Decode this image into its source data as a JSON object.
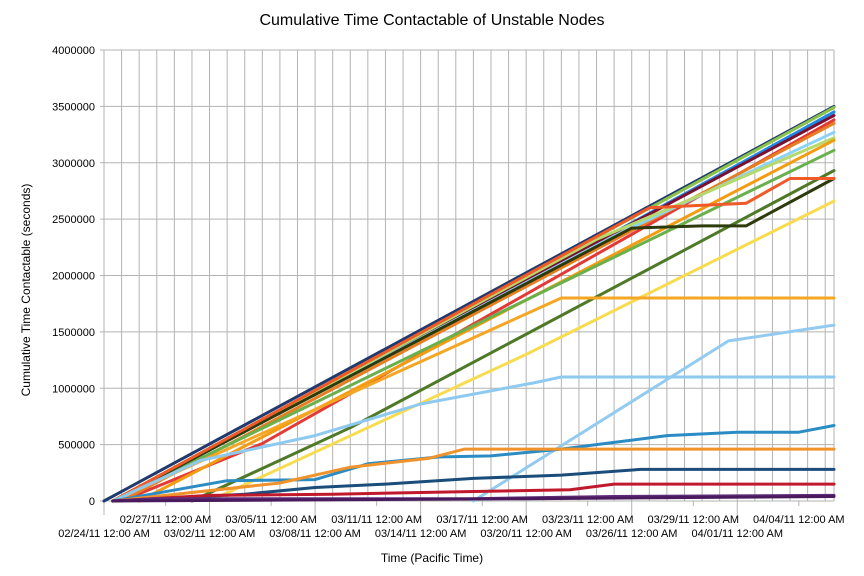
{
  "chart_data": {
    "type": "line",
    "title": "Cumulative Time Contactable of Unstable Nodes",
    "xlabel": "Time (Pacific Time)",
    "ylabel": "Cumulative Time Contactable (seconds)",
    "ylim": [
      0,
      4000000
    ],
    "yticks": [
      0,
      500000,
      1000000,
      1500000,
      2000000,
      2500000,
      3000000,
      3500000,
      4000000
    ],
    "xlim": [
      "2011-02-24 00:00",
      "2011-04-06 12:00"
    ],
    "xticks": [
      {
        "t": "2011-02-27 12:00",
        "label": "02/27/11 12:00 AM"
      },
      {
        "t": "2011-03-05 12:00",
        "label": "03/05/11 12:00 AM"
      },
      {
        "t": "2011-03-11 12:00",
        "label": "03/11/11 12:00 AM"
      },
      {
        "t": "2011-03-17 12:00",
        "label": "03/17/11 12:00 AM"
      },
      {
        "t": "2011-03-23 12:00",
        "label": "03/23/11 12:00 AM"
      },
      {
        "t": "2011-03-29 12:00",
        "label": "03/29/11 12:00 AM"
      },
      {
        "t": "2011-04-04 12:00",
        "label": "04/04/11 12:00 AM"
      },
      {
        "t": "2011-02-24 00:00",
        "label": "02/24/11 12:00 AM"
      },
      {
        "t": "2011-03-02 00:00",
        "label": "03/02/11 12:00 AM"
      },
      {
        "t": "2011-03-08 00:00",
        "label": "03/08/11 12:00 AM"
      },
      {
        "t": "2011-03-14 00:00",
        "label": "03/14/11 12:00 AM"
      },
      {
        "t": "2011-03-20 00:00",
        "label": "03/20/11 12:00 AM"
      },
      {
        "t": "2011-03-26 00:00",
        "label": "03/26/11 12:00 AM"
      },
      {
        "t": "2011-04-01 00:00",
        "label": "04/01/11 12:00 AM"
      }
    ],
    "grid": true,
    "legend": "none",
    "series": [
      {
        "color": "#1f3a6e",
        "points": [
          [
            "2011-02-24 00:00",
            0
          ],
          [
            "2011-04-06 12:00",
            3500000
          ]
        ]
      },
      {
        "color": "#8bc34a",
        "points": [
          [
            "2011-02-24 12:00",
            0
          ],
          [
            "2011-04-06 12:00",
            3490000
          ]
        ]
      },
      {
        "color": "#1e88e5",
        "points": [
          [
            "2011-02-24 12:00",
            0
          ],
          [
            "2011-03-23 00:00",
            2210000
          ],
          [
            "2011-04-06 12:00",
            3450000
          ]
        ]
      },
      {
        "color": "#7b1030",
        "points": [
          [
            "2011-02-24 12:00",
            0
          ],
          [
            "2011-04-06 12:00",
            3420000
          ]
        ]
      },
      {
        "color": "#e53935",
        "points": [
          [
            "2011-02-25 00:00",
            0
          ],
          [
            "2011-03-05 00:00",
            510000
          ],
          [
            "2011-04-06 12:00",
            3380000
          ]
        ]
      },
      {
        "color": "#e67e22",
        "points": [
          [
            "2011-02-25 00:00",
            0
          ],
          [
            "2011-04-06 12:00",
            3350000
          ]
        ]
      },
      {
        "color": "#8bd3f5",
        "points": [
          [
            "2011-02-24 12:00",
            0
          ],
          [
            "2011-03-25 00:00",
            2350000
          ],
          [
            "2011-04-06 12:00",
            3270000
          ]
        ]
      },
      {
        "color": "#b5d96b",
        "points": [
          [
            "2011-02-24 12:00",
            0
          ],
          [
            "2011-03-24 00:00",
            2320000
          ],
          [
            "2011-04-06 12:00",
            3220000
          ]
        ]
      },
      {
        "color": "#f39c12",
        "points": [
          [
            "2011-02-26 00:00",
            0
          ],
          [
            "2011-04-06 12:00",
            3200000
          ]
        ]
      },
      {
        "color": "#6ab04c",
        "points": [
          [
            "2011-02-24 12:00",
            0
          ],
          [
            "2011-04-06 12:00",
            3110000
          ]
        ]
      },
      {
        "color": "#4e7a27",
        "points": [
          [
            "2011-03-01 00:00",
            0
          ],
          [
            "2011-03-10 00:00",
            650000
          ],
          [
            "2011-04-06 12:00",
            2930000
          ]
        ]
      },
      {
        "color": "#2d3b0c",
        "points": [
          [
            "2011-02-24 12:00",
            0
          ],
          [
            "2011-03-26 00:00",
            2420000
          ],
          [
            "2011-03-30 00:00",
            2440000
          ],
          [
            "2011-04-01 12:00",
            2440000
          ],
          [
            "2011-04-06 12:00",
            2860000
          ]
        ]
      },
      {
        "color": "#f05a28",
        "points": [
          [
            "2011-02-24 12:00",
            0
          ],
          [
            "2011-03-27 00:00",
            2600000
          ],
          [
            "2011-04-01 12:00",
            2640000
          ],
          [
            "2011-04-04 00:00",
            2860000
          ],
          [
            "2011-04-06 12:00",
            2860000
          ]
        ]
      },
      {
        "color": "#f7dc4f",
        "points": [
          [
            "2011-03-02 00:00",
            0
          ],
          [
            "2011-03-20 00:00",
            1300000
          ],
          [
            "2011-04-06 12:00",
            2660000
          ]
        ]
      },
      {
        "color": "#f5a623",
        "points": [
          [
            "2011-02-24 12:00",
            0
          ],
          [
            "2011-03-22 00:00",
            1800000
          ],
          [
            "2011-04-06 12:00",
            1800000
          ]
        ]
      },
      {
        "color": "#8ec9ef",
        "points": [
          [
            "2011-02-24 12:00",
            0
          ],
          [
            "2011-03-01 12:00",
            360000
          ],
          [
            "2011-03-08 00:00",
            580000
          ],
          [
            "2011-03-14 00:00",
            860000
          ],
          [
            "2011-03-20 12:00",
            1050000
          ],
          [
            "2011-03-22 00:00",
            1100000
          ],
          [
            "2011-04-06 12:00",
            1100000
          ]
        ]
      },
      {
        "color": "#93cbf0",
        "points": [
          [
            "2011-03-17 00:00",
            0
          ],
          [
            "2011-03-31 12:00",
            1420000
          ],
          [
            "2011-04-06 12:00",
            1560000
          ]
        ]
      },
      {
        "color": "#2b8cc4",
        "points": [
          [
            "2011-02-24 12:00",
            0
          ],
          [
            "2011-03-03 00:00",
            180000
          ],
          [
            "2011-03-08 00:00",
            190000
          ],
          [
            "2011-03-11 00:00",
            330000
          ],
          [
            "2011-03-15 00:00",
            390000
          ],
          [
            "2011-03-18 00:00",
            400000
          ],
          [
            "2011-03-22 00:00",
            460000
          ],
          [
            "2011-03-25 00:00",
            520000
          ],
          [
            "2011-03-28 00:00",
            580000
          ],
          [
            "2011-04-01 00:00",
            610000
          ],
          [
            "2011-04-04 12:00",
            610000
          ],
          [
            "2011-04-06 12:00",
            670000
          ]
        ]
      },
      {
        "color": "#f0932b",
        "points": [
          [
            "2011-02-24 12:00",
            0
          ],
          [
            "2011-03-06 00:00",
            160000
          ],
          [
            "2011-03-10 00:00",
            300000
          ],
          [
            "2011-03-14 12:00",
            380000
          ],
          [
            "2011-03-16 12:00",
            460000
          ],
          [
            "2011-04-06 12:00",
            460000
          ]
        ]
      },
      {
        "color": "#1a4d7a",
        "points": [
          [
            "2011-02-24 12:00",
            0
          ],
          [
            "2011-03-04 00:00",
            60000
          ],
          [
            "2011-03-08 00:00",
            120000
          ],
          [
            "2011-03-12 00:00",
            150000
          ],
          [
            "2011-03-17 00:00",
            200000
          ],
          [
            "2011-03-22 00:00",
            230000
          ],
          [
            "2011-03-26 12:00",
            280000
          ],
          [
            "2011-04-06 12:00",
            280000
          ]
        ]
      },
      {
        "color": "#c0192c",
        "points": [
          [
            "2011-02-24 12:00",
            0
          ],
          [
            "2011-03-02 00:00",
            50000
          ],
          [
            "2011-03-09 00:00",
            60000
          ],
          [
            "2011-03-15 12:00",
            80000
          ],
          [
            "2011-03-22 12:00",
            100000
          ],
          [
            "2011-03-25 00:00",
            150000
          ],
          [
            "2011-04-06 12:00",
            150000
          ]
        ]
      },
      {
        "color": "#5e2d79",
        "points": [
          [
            "2011-02-24 12:00",
            0
          ],
          [
            "2011-02-27 00:00",
            20000
          ],
          [
            "2011-03-17 00:00",
            20000
          ],
          [
            "2011-03-25 00:00",
            40000
          ],
          [
            "2011-04-06 12:00",
            50000
          ]
        ]
      },
      {
        "color": "#4a1a5e",
        "points": [
          [
            "2011-02-24 12:00",
            0
          ],
          [
            "2011-03-20 00:00",
            20000
          ],
          [
            "2011-04-06 12:00",
            40000
          ]
        ]
      }
    ]
  }
}
